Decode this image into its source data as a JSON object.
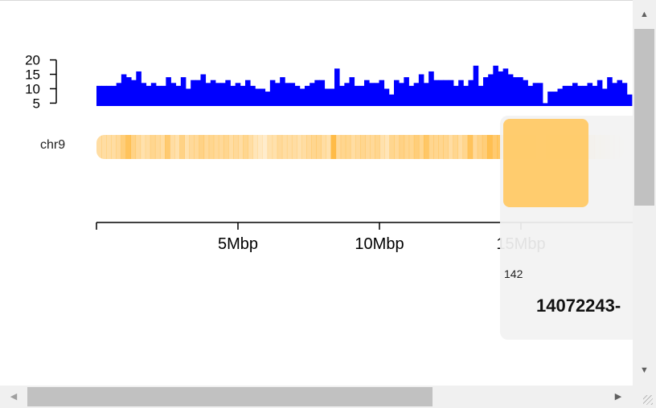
{
  "chart_data": {
    "type": "bar",
    "chromosome": "chr9",
    "histogram": {
      "yticks": [
        5,
        10,
        15,
        20
      ],
      "ylim": [
        4,
        21
      ],
      "color": "#0000ff",
      "values": [
        11,
        11,
        11,
        11,
        12,
        15,
        14,
        13,
        16,
        12,
        11,
        12,
        11,
        11,
        14,
        12,
        11,
        14,
        10,
        13,
        13,
        15,
        12,
        13,
        12,
        12,
        13,
        11,
        12,
        11,
        13,
        11,
        10,
        10,
        9,
        13,
        12,
        14,
        12,
        12,
        11,
        10,
        11,
        12,
        13,
        13,
        10,
        10,
        17,
        11,
        12,
        14,
        11,
        11,
        13,
        12,
        12,
        13,
        10,
        8,
        13,
        12,
        14,
        11,
        12,
        15,
        12,
        16,
        13,
        13,
        13,
        13,
        11,
        13,
        11,
        13,
        18,
        11,
        14,
        15,
        18,
        16,
        17,
        15,
        14,
        14,
        13,
        11,
        12,
        12,
        5,
        9,
        9,
        10,
        11,
        11,
        12,
        11,
        11,
        12,
        11,
        13,
        10,
        14,
        12,
        13,
        12,
        8
      ]
    },
    "ideogram": {
      "color": "#ffb433",
      "intensities": [
        0.45,
        0.45,
        0.45,
        0.45,
        0.5,
        0.65,
        0.8,
        0.6,
        0.5,
        0.4,
        0.45,
        0.55,
        0.5,
        0.45,
        0.7,
        0.45,
        0.4,
        0.6,
        0.4,
        0.5,
        0.5,
        0.6,
        0.5,
        0.55,
        0.5,
        0.5,
        0.55,
        0.45,
        0.5,
        0.45,
        0.55,
        0.45,
        0.35,
        0.3,
        0.25,
        0.4,
        0.4,
        0.5,
        0.45,
        0.45,
        0.45,
        0.4,
        0.45,
        0.5,
        0.55,
        0.55,
        0.45,
        0.4,
        0.9,
        0.5,
        0.55,
        0.55,
        0.45,
        0.5,
        0.55,
        0.5,
        0.5,
        0.55,
        0.4,
        0.35,
        0.55,
        0.5,
        0.6,
        0.55,
        0.55,
        0.65,
        0.55,
        0.75,
        0.55,
        0.55,
        0.55,
        0.55,
        0.45,
        0.55,
        0.45,
        0.55,
        0.8,
        0.5,
        0.6,
        0.65,
        0.85,
        0.7,
        0.75,
        0.65,
        0.6,
        0.6,
        0.55,
        0.45,
        0.5,
        0.5,
        0.3,
        0.35,
        0.4,
        0.4,
        0.45,
        0.45,
        0.5,
        0.45,
        0.45,
        0.5,
        0.45,
        0.4,
        0.3,
        0.3,
        0.2,
        0.15,
        0.12,
        0.1
      ]
    },
    "xaxis": {
      "unit": "Mbp",
      "range_bp": [
        0,
        18900000
      ],
      "ticks": [
        {
          "value": 0,
          "label": ""
        },
        {
          "value": 5000000,
          "label": "5Mbp"
        },
        {
          "value": 10000000,
          "label": "10Mbp"
        },
        {
          "value": 15000000,
          "label": "15Mbp"
        }
      ]
    }
  },
  "tooltip": {
    "swatch_color": "#ffc966",
    "small_text": "142",
    "big_text": "14072243-"
  },
  "scrollbars": {
    "up_arrow": "▲",
    "down_arrow": "▼",
    "left_arrow": "◀",
    "right_arrow": "▶"
  }
}
